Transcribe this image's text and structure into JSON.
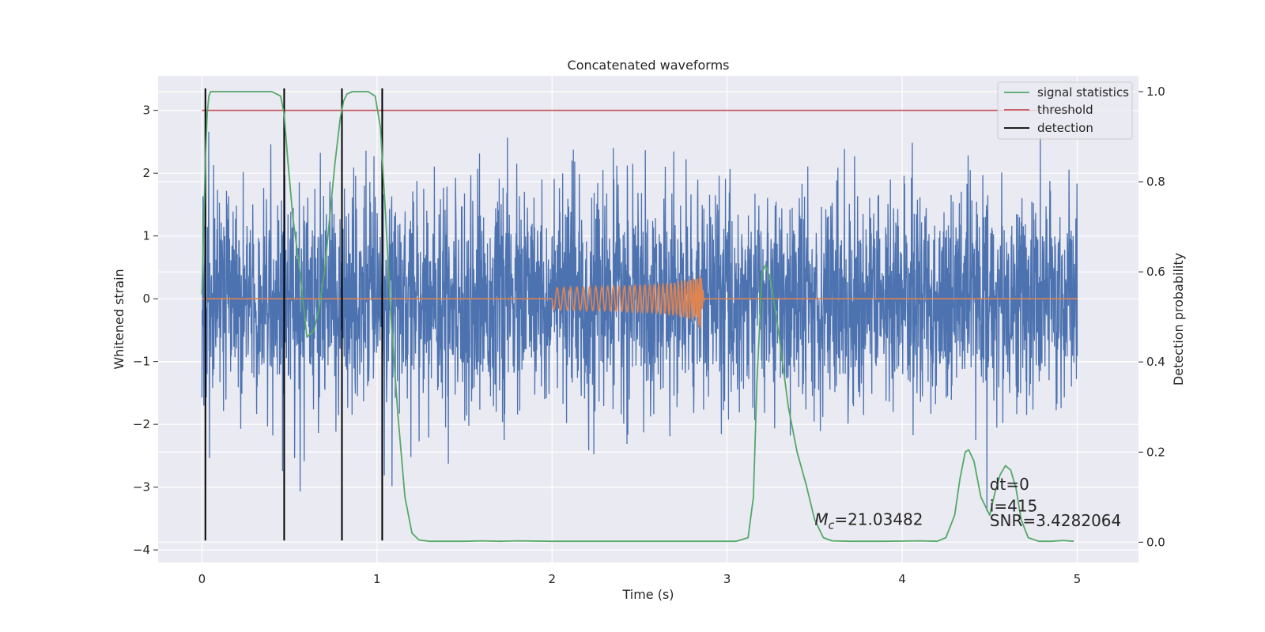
{
  "chart_data": {
    "type": "line",
    "title": "Concatenated waveforms",
    "xlabel": "Time (s)",
    "ylabel": "Whitened strain",
    "y2label": "Detection probability",
    "xlim": [
      -0.25,
      5.35
    ],
    "ylim": [
      -4.2,
      3.55
    ],
    "y2lim": [
      -0.045,
      1.035
    ],
    "x_ticks": [
      0,
      1,
      2,
      3,
      4,
      5
    ],
    "y_ticks": [
      -4,
      -3,
      -2,
      -1,
      0,
      1,
      2,
      3
    ],
    "y2_ticks": [
      0.0,
      0.2,
      0.4,
      0.6,
      0.8,
      1.0
    ],
    "x_tick_labels": [
      "0",
      "1",
      "2",
      "3",
      "4",
      "5"
    ],
    "y_tick_labels": [
      "−4",
      "−3",
      "−2",
      "−1",
      "0",
      "1",
      "2",
      "3"
    ],
    "y2_tick_labels": [
      "0.0",
      "0.2",
      "0.4",
      "0.6",
      "0.8",
      "1.0"
    ],
    "grid": true,
    "legend_position": "top-right",
    "legend": [
      "signal statistics",
      "threshold",
      "detection"
    ],
    "colors": {
      "strain": "#4c72b0",
      "template": "#dd8452",
      "signal_statistics": "#55a868",
      "threshold": "#c44e52",
      "detection": "#000000",
      "background": "#eaeaf2",
      "grid": "#ffffff"
    },
    "series": [
      {
        "role": "whitened strain noise (sampled noise, axis: left)",
        "x_range": [
          0,
          5
        ],
        "envelope_min": -3.55,
        "envelope_max": 3.35,
        "typical_std": 0.85
      },
      {
        "role": "injected chirp waveform (axis: left)",
        "x_start": 2.0,
        "x_merger": 2.85,
        "peak_amplitude": 0.58,
        "x_range_flat": [
          0,
          5
        ]
      },
      {
        "name": "signal statistics",
        "axis": "right",
        "x": [
          0.0,
          0.01,
          0.02,
          0.03,
          0.04,
          0.05,
          0.08,
          0.15,
          0.3,
          0.4,
          0.45,
          0.47,
          0.49,
          0.52,
          0.56,
          0.6,
          0.64,
          0.67,
          0.7,
          0.73,
          0.76,
          0.79,
          0.81,
          0.83,
          0.86,
          0.9,
          0.95,
          0.99,
          1.02,
          1.05,
          1.08,
          1.12,
          1.16,
          1.2,
          1.24,
          1.3,
          1.5,
          1.6,
          1.7,
          1.8,
          2.0,
          2.5,
          2.8,
          3.05,
          3.12,
          3.15,
          3.17,
          3.2,
          3.22,
          3.25,
          3.3,
          3.35,
          3.4,
          3.45,
          3.5,
          3.55,
          3.6,
          3.7,
          3.9,
          4.1,
          4.2,
          4.25,
          4.3,
          4.33,
          4.36,
          4.38,
          4.41,
          4.45,
          4.5,
          4.53,
          4.56,
          4.59,
          4.62,
          4.65,
          4.68,
          4.72,
          4.78,
          4.85,
          4.92,
          4.98
        ],
        "y": [
          0.55,
          0.7,
          0.85,
          0.95,
          0.99,
          1.0,
          1.0,
          1.0,
          1.0,
          1.0,
          0.99,
          0.95,
          0.85,
          0.72,
          0.6,
          0.455,
          0.47,
          0.52,
          0.6,
          0.72,
          0.84,
          0.94,
          0.98,
          0.995,
          1.0,
          1.0,
          1.0,
          0.99,
          0.92,
          0.72,
          0.5,
          0.28,
          0.1,
          0.02,
          0.005,
          0.002,
          0.002,
          0.003,
          0.002,
          0.003,
          0.002,
          0.002,
          0.002,
          0.002,
          0.01,
          0.1,
          0.35,
          0.6,
          0.615,
          0.58,
          0.45,
          0.3,
          0.2,
          0.13,
          0.05,
          0.01,
          0.003,
          0.002,
          0.002,
          0.003,
          0.002,
          0.01,
          0.06,
          0.14,
          0.2,
          0.205,
          0.18,
          0.1,
          0.06,
          0.11,
          0.15,
          0.17,
          0.16,
          0.12,
          0.05,
          0.01,
          0.002,
          0.002,
          0.004,
          0.002
        ]
      },
      {
        "name": "threshold",
        "axis": "left",
        "x": [
          0,
          5
        ],
        "y": [
          3,
          3
        ]
      },
      {
        "name": "detection",
        "axis": "left",
        "type": "vertical_lines",
        "x": [
          0.02,
          0.47,
          0.8,
          1.03
        ],
        "y_range": [
          -3.85,
          3.35
        ]
      }
    ],
    "annotations": [
      {
        "x": 3.5,
        "y": -3.6,
        "text": "=21.03482",
        "prefix_italic": "M",
        "subscript": "c"
      },
      {
        "x": 4.5,
        "y": -3.04,
        "text": "dt=0"
      },
      {
        "x": 4.5,
        "y": -3.39,
        "text": "i=415"
      },
      {
        "x": 4.5,
        "y": -3.62,
        "text": "SNR=3.4282064"
      }
    ]
  }
}
